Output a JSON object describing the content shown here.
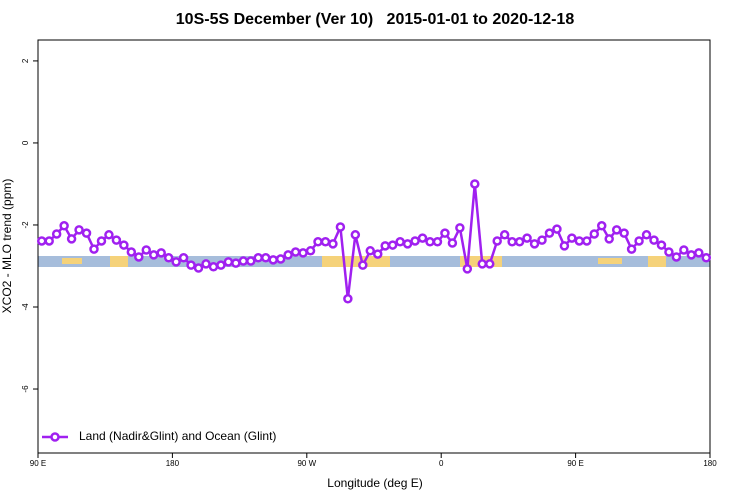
{
  "chart_data": {
    "type": "line",
    "title": "10S-5S December (Ver 10)   2015-01-01 to 2020-12-18",
    "x_label": "Longitude (deg E)",
    "y_label": "XCO2 - MLO trend (ppm)",
    "x": [
      92.5,
      97.5,
      102.5,
      107.5,
      112.5,
      117.5,
      122.5,
      127.5,
      132.5,
      137.5,
      142.5,
      147.5,
      152.5,
      157.5,
      162.5,
      167.5,
      172.5,
      177.5,
      182.5,
      187.5,
      192.5,
      197.5,
      202.5,
      207.5,
      212.5,
      217.5,
      222.5,
      227.5,
      232.5,
      237.5,
      242.5,
      247.5,
      252.5,
      257.5,
      262.5,
      267.5,
      272.5,
      277.5,
      282.5,
      287.5,
      292.5,
      297.5,
      302.5,
      307.5,
      312.5,
      317.5,
      322.5,
      327.5,
      332.5,
      337.5,
      342.5,
      347.5,
      352.5,
      357.5,
      362.5,
      367.5,
      372.5,
      377.5,
      382.5,
      387.5,
      392.5,
      397.5,
      402.5,
      407.5,
      412.5,
      417.5,
      422.5,
      427.5,
      432.5,
      437.5,
      442.5,
      447.5,
      452.5,
      457.5,
      462.5,
      467.5,
      472.5,
      477.5,
      482.5,
      487.5,
      492.5,
      497.5,
      502.5,
      507.5,
      512.5,
      517.5,
      522.5,
      527.5,
      532.5,
      537.5
    ],
    "series": [
      {
        "name": "Land (Nadir&Glint) and Ocean (Glint)",
        "color": "#a020f0",
        "values": [
          -2.39,
          -2.39,
          -2.22,
          -2.02,
          -2.34,
          -2.12,
          -2.2,
          -2.59,
          -2.39,
          -2.24,
          -2.37,
          -2.49,
          -2.66,
          -2.78,
          -2.61,
          -2.73,
          -2.68,
          -2.8,
          -2.9,
          -2.8,
          -2.98,
          -3.05,
          -2.95,
          -3.02,
          -2.98,
          -2.9,
          -2.93,
          -2.88,
          -2.88,
          -2.8,
          -2.8,
          -2.85,
          -2.83,
          -2.73,
          -2.66,
          -2.68,
          -2.63,
          -2.41,
          -2.41,
          -2.46,
          -2.05,
          -3.8,
          -2.24,
          -2.98,
          -2.63,
          -2.71,
          -2.51,
          -2.49,
          -2.41,
          -2.46,
          -2.39,
          -2.32,
          -2.41,
          -2.41,
          -2.2,
          -2.44,
          -2.07,
          -3.07,
          -1.0,
          -2.95,
          -2.95,
          -2.39,
          -2.24,
          -2.41,
          -2.41,
          -2.32,
          -2.46,
          -2.37,
          -2.2,
          -2.1,
          -2.51,
          -2.32,
          -2.39,
          -2.39,
          -2.22,
          -2.02,
          -2.34,
          -2.12,
          -2.2,
          -2.59,
          -2.39,
          -2.24,
          -2.37,
          -2.49,
          -2.66,
          -2.78,
          -2.61,
          -2.73,
          -2.68,
          -2.8
        ]
      }
    ],
    "xlim": [
      90,
      540
    ],
    "xticks": [
      {
        "value": 90,
        "label": "90 E"
      },
      180,
      {
        "value": 270,
        "label": "90 W"
      },
      {
        "value": 360,
        "label": "0"
      },
      {
        "value": 450,
        "label": "90 E"
      },
      {
        "value": 540,
        "label": "180"
      }
    ],
    "ylim": [
      -7.56,
      2.51
    ],
    "yticks": [
      2,
      0,
      -2,
      -4,
      -6
    ],
    "legend": "bottom-left"
  }
}
